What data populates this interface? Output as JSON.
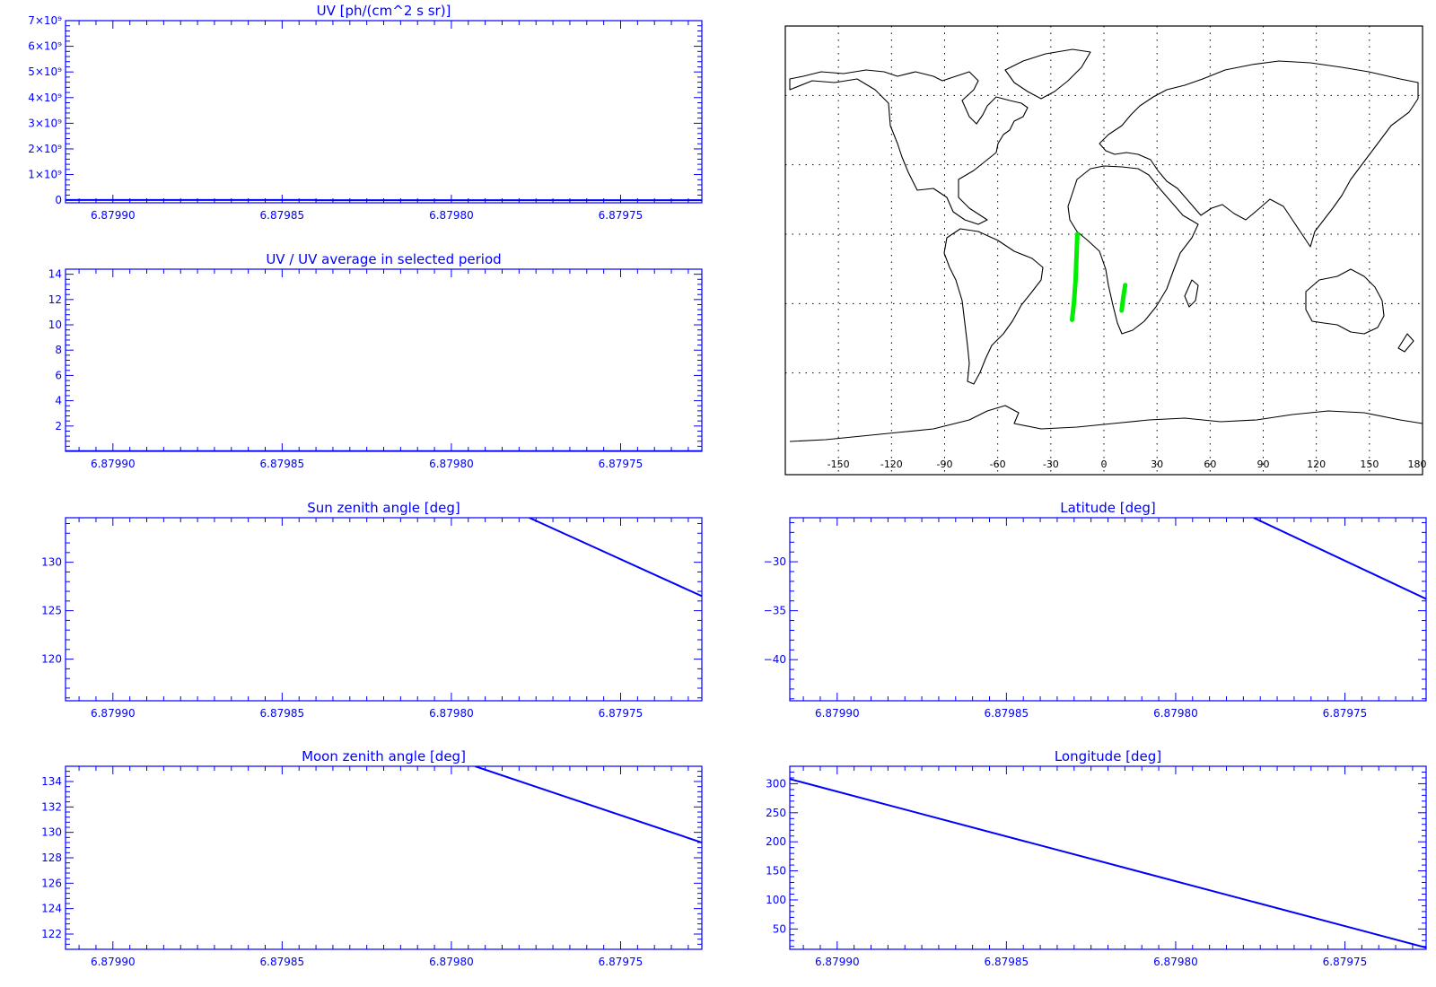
{
  "colors": {
    "axis": "#0000ff",
    "trace": "#0000ff",
    "map_outline": "#000000",
    "grid": "#000000",
    "track": "#00ee00",
    "background": "#ffffff"
  },
  "chart_data": [
    {
      "id": "uv",
      "type": "line",
      "title": "UV [ph/(cm^2 s sr)]",
      "x_ticks": [
        6.8799,
        6.87985,
        6.8798,
        6.87975
      ],
      "x_tick_labels": [
        "6.87990",
        "6.87985",
        "6.87980",
        "6.87975"
      ],
      "xlim": [
        6.879914,
        6.879726
      ],
      "ylim": [
        -100000000.0,
        7000000000.0
      ],
      "y_ticks": [
        0,
        1000000000.0,
        2000000000.0,
        3000000000.0,
        4000000000.0,
        5000000000.0,
        6000000000.0,
        7000000000.0
      ],
      "y_tick_labels": [
        "0",
        "1×10⁹",
        "2×10⁹",
        "3×10⁹",
        "4×10⁹",
        "5×10⁹",
        "6×10⁹",
        "7×10⁹"
      ],
      "series": [
        {
          "x": [
            6.879914,
            6.87984,
            6.87984,
            6.879726
          ],
          "y": [
            10000000.0,
            10000000.0,
            0,
            0
          ]
        }
      ]
    },
    {
      "id": "uv-ratio",
      "type": "line",
      "title": "UV / UV average in selected period",
      "x_ticks": [
        6.8799,
        6.87985,
        6.8798,
        6.87975
      ],
      "x_tick_labels": [
        "6.87990",
        "6.87985",
        "6.87980",
        "6.87975"
      ],
      "xlim": [
        6.879914,
        6.879726
      ],
      "ylim": [
        0,
        14.4
      ],
      "y_ticks": [
        2,
        4,
        6,
        8,
        10,
        12,
        14
      ],
      "y_tick_labels": [
        "2",
        "4",
        "6",
        "8",
        "10",
        "12",
        "14"
      ],
      "series": [
        {
          "x": [
            6.879914,
            6.879726
          ],
          "y": [
            0.02,
            0.02
          ]
        }
      ]
    },
    {
      "id": "sun-zenith",
      "type": "line",
      "title": "Sun zenith angle [deg]",
      "x_ticks": [
        6.8799,
        6.87985,
        6.8798,
        6.87975
      ],
      "x_tick_labels": [
        "6.87990",
        "6.87985",
        "6.87980",
        "6.87975"
      ],
      "xlim": [
        6.879914,
        6.879726
      ],
      "ylim": [
        115.7,
        134.6
      ],
      "y_ticks": [
        120,
        125,
        130
      ],
      "y_tick_labels": [
        "120",
        "125",
        "130"
      ],
      "series": [
        {
          "x": [
            6.879777,
            6.879726
          ],
          "y": [
            134.6,
            126.5
          ]
        }
      ]
    },
    {
      "id": "moon-zenith",
      "type": "line",
      "title": "Moon zenith angle [deg]",
      "x_ticks": [
        6.8799,
        6.87985,
        6.8798,
        6.87975
      ],
      "x_tick_labels": [
        "6.87990",
        "6.87985",
        "6.87980",
        "6.87975"
      ],
      "xlim": [
        6.879914,
        6.879726
      ],
      "ylim": [
        120.8,
        135.2
      ],
      "y_ticks": [
        122,
        124,
        126,
        128,
        130,
        132,
        134
      ],
      "y_tick_labels": [
        "122",
        "124",
        "126",
        "128",
        "130",
        "132",
        "134"
      ],
      "series": [
        {
          "x": [
            6.879793,
            6.879726
          ],
          "y": [
            135.2,
            129.2
          ]
        }
      ]
    },
    {
      "id": "latitude",
      "type": "line",
      "title": "Latitude [deg]",
      "x_ticks": [
        6.8799,
        6.87985,
        6.8798,
        6.87975
      ],
      "x_tick_labels": [
        "6.87990",
        "6.87985",
        "6.87980",
        "6.87975"
      ],
      "xlim": [
        6.879914,
        6.879726
      ],
      "ylim": [
        -44.2,
        -25.5
      ],
      "y_ticks": [
        -40,
        -35,
        -30
      ],
      "y_tick_labels": [
        "−40",
        "−35",
        "−30"
      ],
      "series": [
        {
          "x": [
            6.879777,
            6.879726
          ],
          "y": [
            -25.5,
            -33.8
          ]
        }
      ]
    },
    {
      "id": "longitude",
      "type": "line",
      "title": "Longitude [deg]",
      "x_ticks": [
        6.8799,
        6.87985,
        6.8798,
        6.87975
      ],
      "x_tick_labels": [
        "6.87990",
        "6.87985",
        "6.87980",
        "6.87975"
      ],
      "xlim": [
        6.879914,
        6.879726
      ],
      "ylim": [
        15,
        330
      ],
      "y_ticks": [
        50,
        100,
        150,
        200,
        250,
        300
      ],
      "y_tick_labels": [
        "50",
        "100",
        "150",
        "200",
        "250",
        "300"
      ],
      "series": [
        {
          "x": [
            6.879914,
            6.879726
          ],
          "y": [
            308,
            18
          ]
        }
      ]
    }
  ],
  "map": {
    "type": "world-map",
    "lon_range": [
      -180,
      180
    ],
    "lat_range": [
      -90,
      90
    ],
    "lon_tick_labels": [
      "-150",
      "-120",
      "-90",
      "-60",
      "-30",
      "0",
      "30",
      "60",
      "90",
      "120",
      "150",
      "180"
    ],
    "lon_ticks": [
      -150,
      -120,
      -90,
      -60,
      -30,
      0,
      30,
      60,
      90,
      120,
      150,
      180
    ],
    "lat_grid": [
      -60,
      -30,
      0,
      30,
      60
    ],
    "tracks": [
      {
        "lon": [
          -15,
          -15.5,
          -16,
          -17,
          -18
        ],
        "lat": [
          0,
          -10,
          -20,
          -30,
          -37
        ]
      },
      {
        "lon": [
          12,
          11,
          10
        ],
        "lat": [
          -22,
          -27,
          -33
        ]
      }
    ]
  }
}
